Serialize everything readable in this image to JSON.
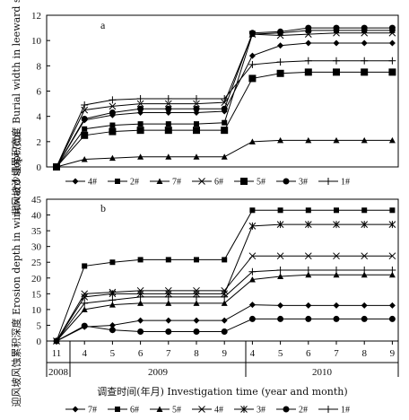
{
  "x_axis": {
    "month_labels": [
      "11",
      "4",
      "5",
      "6",
      "7",
      "8",
      "9",
      "4",
      "5",
      "6",
      "7",
      "8",
      "9"
    ],
    "year_labels": [
      "2008",
      "2009",
      "2010"
    ],
    "xlabel": "调查时间(年月) Investigation time (year and month)"
  },
  "chart_data": [
    {
      "type": "line",
      "panel_label": "a",
      "ylabel": "背风坡沙埋累积宽度 Burial width in leeward slope/m",
      "ylim": [
        0,
        12
      ],
      "yticks": [
        0,
        2,
        4,
        6,
        8,
        10,
        12
      ],
      "categories": [
        "2008-11",
        "2009-04",
        "2009-05",
        "2009-06",
        "2009-07",
        "2009-08",
        "2009-09",
        "2010-04",
        "2010-05",
        "2010-06",
        "2010-07",
        "2010-08",
        "2010-09"
      ],
      "series": [
        {
          "name": "4#",
          "marker": "diamond",
          "values": [
            0,
            3.7,
            4.1,
            4.3,
            4.3,
            4.3,
            4.4,
            8.8,
            9.6,
            9.8,
            9.8,
            9.8,
            9.8
          ]
        },
        {
          "name": "2#",
          "marker": "square",
          "values": [
            0,
            3.0,
            3.3,
            3.4,
            3.4,
            3.4,
            3.5,
            10.5,
            10.6,
            10.8,
            10.8,
            10.8,
            10.8
          ]
        },
        {
          "name": "7#",
          "marker": "triangle",
          "values": [
            0,
            0.6,
            0.7,
            0.8,
            0.8,
            0.8,
            0.8,
            2.0,
            2.1,
            2.1,
            2.1,
            2.1,
            2.1
          ]
        },
        {
          "name": "6#",
          "marker": "x",
          "values": [
            0,
            4.5,
            4.8,
            5.0,
            5.0,
            5.0,
            5.1,
            10.5,
            10.4,
            10.5,
            10.6,
            10.6,
            10.6
          ]
        },
        {
          "name": "5#",
          "marker": "bigsquare",
          "values": [
            0,
            2.5,
            2.8,
            2.9,
            2.9,
            2.9,
            2.9,
            7.0,
            7.4,
            7.5,
            7.5,
            7.5,
            7.5
          ]
        },
        {
          "name": "3#",
          "marker": "circle",
          "values": [
            0,
            3.8,
            4.3,
            4.6,
            4.6,
            4.6,
            4.6,
            10.6,
            10.7,
            11.0,
            11.0,
            11.0,
            11.0
          ]
        },
        {
          "name": "1#",
          "marker": "plus",
          "values": [
            0,
            4.9,
            5.3,
            5.4,
            5.4,
            5.4,
            5.4,
            8.1,
            8.3,
            8.4,
            8.4,
            8.4,
            8.4
          ]
        }
      ],
      "legend": [
        "4#",
        "2#",
        "7#",
        "6#",
        "5#",
        "3#",
        "1#"
      ]
    },
    {
      "type": "line",
      "panel_label": "b",
      "ylabel": "迎风坡风蚀累积深度 Erosion depth in windward slope/cm",
      "ylim": [
        0,
        45
      ],
      "yticks": [
        0,
        5,
        10,
        15,
        20,
        25,
        30,
        35,
        40,
        45
      ],
      "categories": [
        "2008-11",
        "2009-04",
        "2009-05",
        "2009-06",
        "2009-07",
        "2009-08",
        "2009-09",
        "2010-04",
        "2010-05",
        "2010-06",
        "2010-07",
        "2010-08",
        "2010-09"
      ],
      "series": [
        {
          "name": "7#",
          "marker": "diamond",
          "values": [
            0,
            4.5,
            5.0,
            6.5,
            6.5,
            6.5,
            6.5,
            11.5,
            11.3,
            11.3,
            11.3,
            11.3,
            11.3
          ]
        },
        {
          "name": "6#",
          "marker": "square",
          "values": [
            0,
            23.8,
            25.0,
            25.8,
            25.8,
            25.8,
            25.8,
            41.5,
            41.5,
            41.5,
            41.5,
            41.5,
            41.5
          ]
        },
        {
          "name": "5#",
          "marker": "triangle",
          "values": [
            0,
            10.0,
            11.5,
            12.0,
            12.0,
            12.0,
            12.0,
            19.5,
            20.5,
            21.0,
            21.0,
            21.0,
            21.0
          ]
        },
        {
          "name": "4#",
          "marker": "x",
          "values": [
            0,
            15.0,
            15.5,
            16.0,
            16.0,
            16.0,
            16.0,
            27.0,
            27.0,
            27.0,
            27.0,
            27.0,
            27.0
          ]
        },
        {
          "name": "3#",
          "marker": "star",
          "values": [
            0,
            14.0,
            15.0,
            15.0,
            15.0,
            15.0,
            15.0,
            36.5,
            37.0,
            37.0,
            37.0,
            37.0,
            37.0
          ]
        },
        {
          "name": "2#",
          "marker": "circle",
          "values": [
            0,
            4.8,
            3.5,
            3.0,
            3.0,
            3.0,
            3.0,
            7.0,
            7.0,
            7.0,
            7.0,
            7.0,
            7.0
          ]
        },
        {
          "name": "1#",
          "marker": "plus",
          "values": [
            0,
            12.0,
            13.0,
            14.0,
            14.0,
            14.0,
            14.0,
            22.0,
            22.5,
            22.5,
            22.5,
            22.5,
            22.5
          ]
        }
      ],
      "legend": [
        "7#",
        "6#",
        "5#",
        "4#",
        "3#",
        "2#",
        "1#"
      ]
    }
  ]
}
